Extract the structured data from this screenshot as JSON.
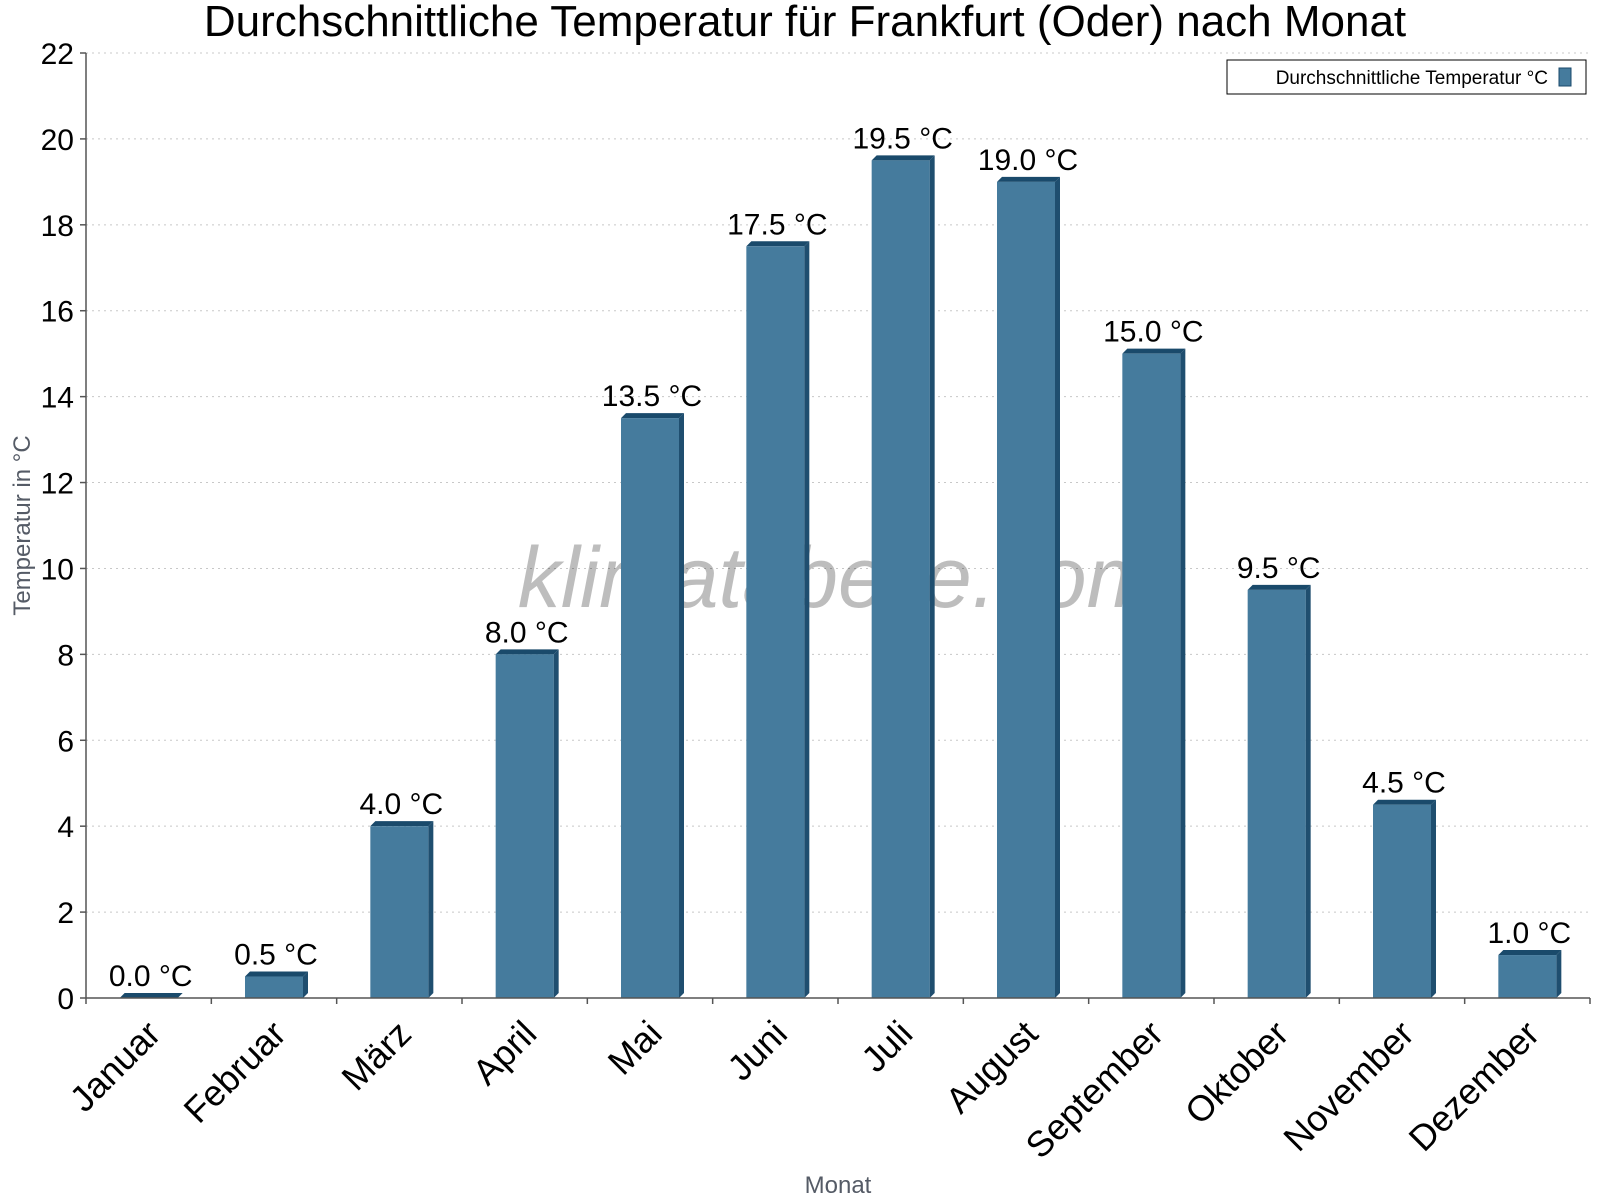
{
  "chart_data": {
    "type": "bar",
    "title": "Durchschnittliche Temperatur für Frankfurt (Oder) nach Monat",
    "xlabel": "Monat",
    "ylabel": "Temperatur in °C",
    "ylim": [
      0,
      22
    ],
    "yticks": [
      0,
      2,
      4,
      6,
      8,
      10,
      12,
      14,
      16,
      18,
      20,
      22
    ],
    "grid": true,
    "legend_position": "top-right",
    "watermark": "klimatabelle.com",
    "categories": [
      "Januar",
      "Februar",
      "März",
      "April",
      "Mai",
      "Juni",
      "Juli",
      "August",
      "September",
      "Oktober",
      "November",
      "Dezember"
    ],
    "series": [
      {
        "name": "Durchschnittliche Temperatur °C",
        "color": "#457b9d",
        "values": [
          0.0,
          0.5,
          4.0,
          8.0,
          13.5,
          17.5,
          19.5,
          19.0,
          15.0,
          9.5,
          4.5,
          1.0
        ],
        "labels": [
          "0.0 °C",
          "0.5 °C",
          "4.0 °C",
          "8.0 °C",
          "13.5 °C",
          "17.5 °C",
          "19.5 °C",
          "19.0 °C",
          "15.0 °C",
          "9.5 °C",
          "4.5 °C",
          "1.0 °C"
        ]
      }
    ]
  }
}
